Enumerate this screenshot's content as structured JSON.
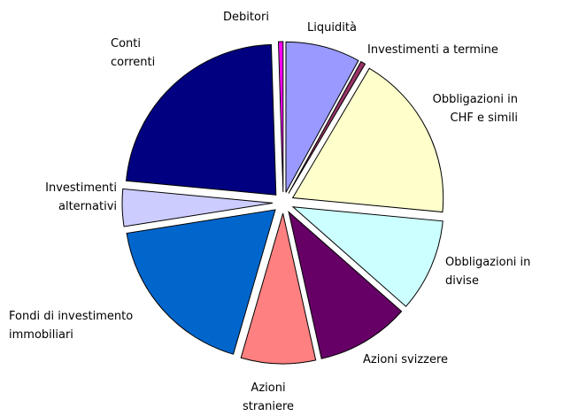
{
  "chart_data": {
    "type": "pie",
    "exploded": true,
    "categories": [
      "Liquidità",
      "Investimenti a termine",
      "Obbligazioni in CHF e simili",
      "Obbligazioni in divise",
      "Azioni svizzere",
      "Azioni straniere",
      "Fondi di investimento immobiliari",
      "Investimenti alternativi",
      "Conti correnti",
      "Debitori"
    ],
    "values": [
      8,
      0.5,
      18,
      10,
      10,
      8,
      18,
      4,
      23,
      0.5
    ],
    "colors": [
      "#9999ff",
      "#993366",
      "#ffffcc",
      "#ccffff",
      "#660066",
      "#ff8080",
      "#0066cc",
      "#ccccff",
      "#000080",
      "#ff00ff"
    ]
  }
}
